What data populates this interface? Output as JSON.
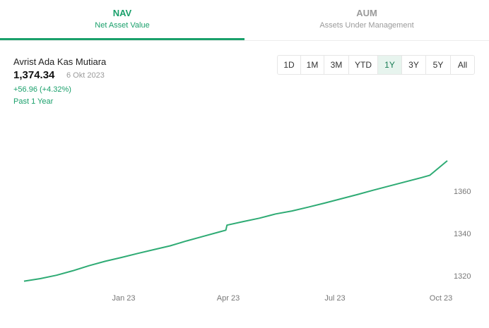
{
  "tabs": [
    {
      "title": "NAV",
      "subtitle": "Net Asset Value",
      "active": true
    },
    {
      "title": "AUM",
      "subtitle": "Assets Under Management",
      "active": false
    }
  ],
  "fund": {
    "name": "Avrist Ada Kas Mutiara",
    "price": "1,374.34",
    "date": "6 Okt 2023",
    "change": "+56.96 (+4.32%)",
    "period": "Past 1 Year"
  },
  "ranges": [
    "1D",
    "1M",
    "3M",
    "YTD",
    "1Y",
    "3Y",
    "5Y",
    "All"
  ],
  "active_range": "1Y",
  "colors": {
    "accent": "#1aa06b",
    "line": "#2eab74",
    "muted": "#9a9a9a"
  },
  "chart_data": {
    "type": "line",
    "x_ticks": [
      "Jan 23",
      "Apr 23",
      "Jul 23",
      "Oct 23"
    ],
    "y_ticks": [
      1320,
      1340,
      1360
    ],
    "ylim": [
      1317.4,
      1374.34
    ],
    "series": [
      {
        "x": [
          "2022-10-06",
          "2022-10-20",
          "2022-11-03",
          "2022-11-17",
          "2022-12-01",
          "2022-12-15",
          "2022-12-29",
          "2023-01-12",
          "2023-01-26",
          "2023-02-09",
          "2023-02-23",
          "2023-03-09",
          "2023-03-23",
          "2023-03-29",
          "2023-03-30",
          "2023-04-13",
          "2023-04-27",
          "2023-05-11",
          "2023-05-25",
          "2023-06-08",
          "2023-06-22",
          "2023-07-06",
          "2023-07-20",
          "2023-08-03",
          "2023-08-17",
          "2023-08-31",
          "2023-09-14",
          "2023-09-21",
          "2023-10-06"
        ],
        "values": [
          1317.4,
          1318.6,
          1320.2,
          1322.3,
          1324.7,
          1326.8,
          1328.6,
          1330.5,
          1332.3,
          1334.1,
          1336.4,
          1338.5,
          1340.6,
          1341.5,
          1343.9,
          1345.6,
          1347.2,
          1349.2,
          1350.6,
          1352.4,
          1354.3,
          1356.3,
          1358.3,
          1360.4,
          1362.4,
          1364.4,
          1366.4,
          1367.5,
          1374.34
        ]
      }
    ]
  }
}
